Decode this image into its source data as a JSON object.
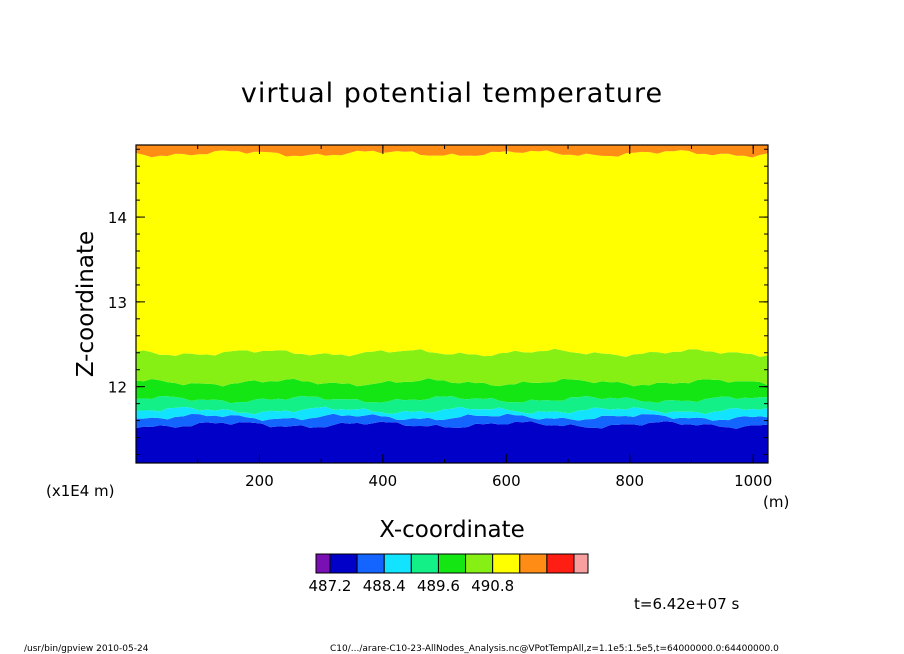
{
  "chart_data": {
    "type": "heatmap",
    "title": "virtual potential temperature",
    "xlabel": "X-coordinate",
    "ylabel": "Z-coordinate",
    "x_units": "(m)",
    "y_scale_note": "(x1E4 m)",
    "xlim": [
      0,
      1024
    ],
    "ylim": [
      11.1,
      14.85
    ],
    "x_ticks": [
      "200",
      "400",
      "600",
      "800",
      "1000"
    ],
    "y_ticks": [
      "12",
      "13",
      "14"
    ],
    "colorbar": {
      "colors": [
        "#7a10b4",
        "#0000c8",
        "#1464ff",
        "#12e4ff",
        "#14f088",
        "#14e614",
        "#86f014",
        "#ffff00",
        "#ff8c14",
        "#ff1e14",
        "#f8a0a0"
      ],
      "labels": [
        "487.2",
        "488.4",
        "489.6",
        "490.8"
      ]
    },
    "bands": [
      {
        "color": "#0000c8",
        "from": 11.1,
        "to": 11.55
      },
      {
        "color": "#1464ff",
        "from": 11.55,
        "to": 11.64
      },
      {
        "color": "#12e4ff",
        "from": 11.64,
        "to": 11.72
      },
      {
        "color": "#14f088",
        "from": 11.72,
        "to": 11.85
      },
      {
        "color": "#14e614",
        "from": 11.85,
        "to": 12.05
      },
      {
        "color": "#86f014",
        "from": 12.05,
        "to": 12.4
      },
      {
        "color": "#ffff00",
        "from": 12.4,
        "to": 14.75
      },
      {
        "color": "#ff8c14",
        "from": 14.75,
        "to": 14.85
      }
    ],
    "time_label": "t=6.42e+07 s"
  },
  "footer": {
    "left": "/usr/bin/gpview   2010-05-24",
    "right": "C10/.../arare-C10-23-AllNodes_Analysis.nc@VPotTempAll,z=1.1e5:1.5e5,t=64000000.0:64400000.0"
  }
}
